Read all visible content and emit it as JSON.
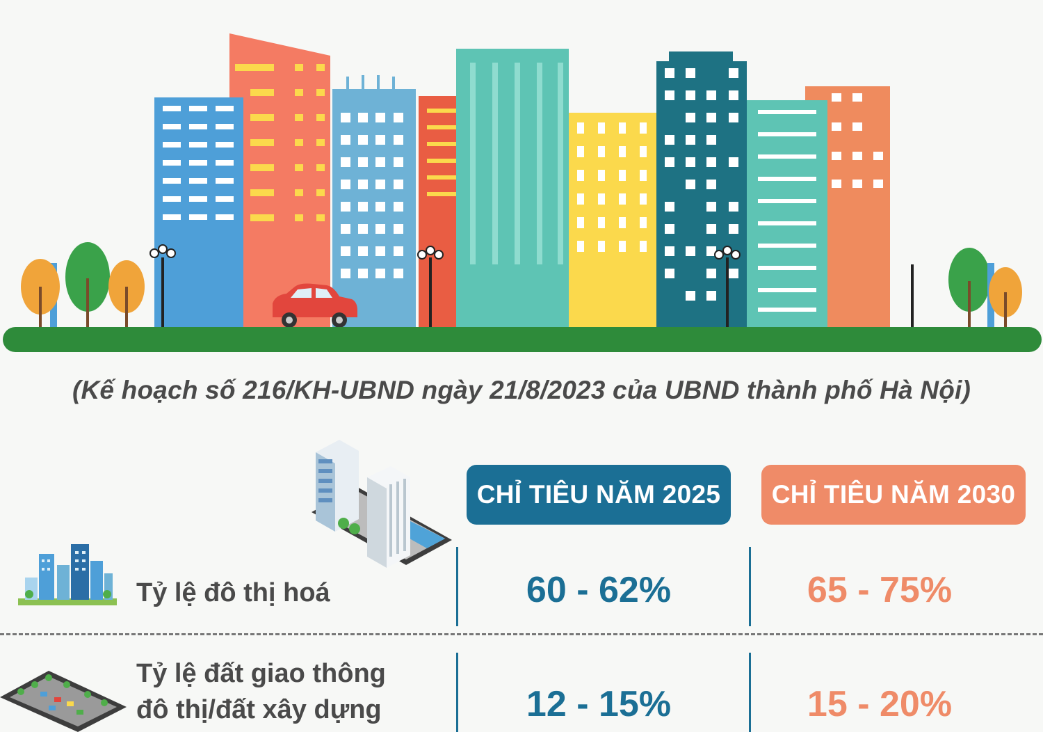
{
  "source_note": "(Kế hoạch số 216/KH-UBND ngày 21/8/2023 của UBND thành phố Hà Nội)",
  "headers": {
    "target_2025": "CHỈ TIÊU NĂM 2025",
    "target_2030": "CHỈ TIÊU NĂM 2030"
  },
  "rows": [
    {
      "label": "Tỷ lệ đô thị hoá",
      "label_line2": "",
      "value_2025": "60 - 62%",
      "value_2030": "65 - 75%"
    },
    {
      "label": "Tỷ lệ đất giao thông",
      "label_line2": "đô thị/đất xây dựng",
      "value_2025": "12 - 15%",
      "value_2030": "15 - 20%"
    }
  ],
  "colors": {
    "blue_accent": "#1b6f95",
    "orange_accent": "#ef8b68",
    "ground": "#2e8b3a"
  },
  "icons": [
    "city-skyline-illustration",
    "office-buildings-icon",
    "city-icon",
    "parking-lot-icon"
  ]
}
